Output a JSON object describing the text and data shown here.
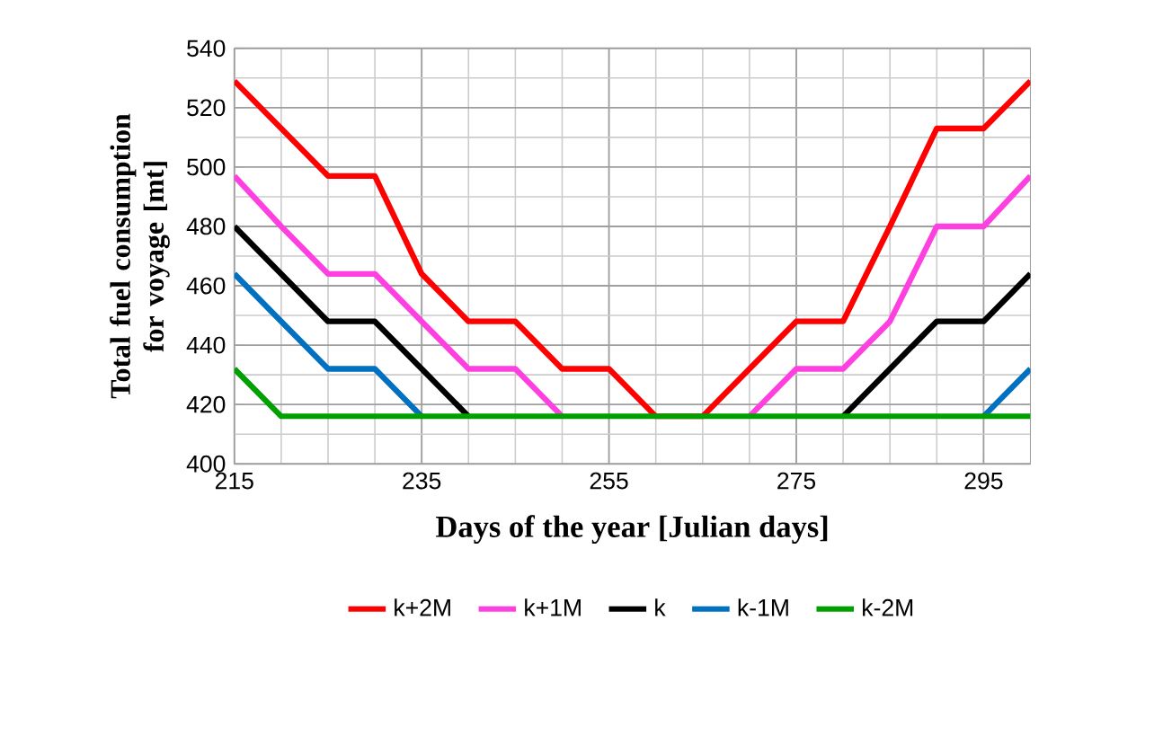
{
  "chart_data": {
    "type": "line",
    "xlabel": "Days of the year [Julian  days]",
    "ylabel": "Total fuel consumption for voyage [mt]",
    "x": [
      215,
      220,
      225,
      230,
      235,
      240,
      245,
      250,
      255,
      260,
      265,
      270,
      275,
      280,
      285,
      290,
      295,
      300
    ],
    "series": [
      {
        "name": "k+2M",
        "color": "#ff0000",
        "values": [
          529,
          513,
          497,
          497,
          464,
          448,
          448,
          432,
          432,
          416,
          416,
          432,
          448,
          448,
          480,
          513,
          513,
          529
        ]
      },
      {
        "name": "k+1M",
        "color": "#ff40e0",
        "values": [
          497,
          480,
          464,
          464,
          448,
          432,
          432,
          416,
          null,
          null,
          null,
          416,
          432,
          432,
          448,
          480,
          480,
          497
        ]
      },
      {
        "name": "k",
        "color": "#000000",
        "values": [
          480,
          464,
          448,
          448,
          432,
          416,
          null,
          null,
          null,
          null,
          null,
          null,
          null,
          416,
          432,
          448,
          448,
          464
        ]
      },
      {
        "name": "k-1M",
        "color": "#0070c0",
        "values": [
          464,
          448,
          432,
          432,
          416,
          null,
          null,
          null,
          null,
          null,
          null,
          null,
          null,
          null,
          null,
          null,
          416,
          432
        ]
      },
      {
        "name": "k-2M",
        "color": "#00a000",
        "values": [
          432,
          416,
          416,
          416,
          416,
          416,
          416,
          416,
          416,
          416,
          416,
          416,
          416,
          416,
          416,
          416,
          416,
          416
        ]
      }
    ],
    "xlim": [
      215,
      300
    ],
    "xticks": [
      215,
      235,
      255,
      275,
      295
    ],
    "ylim": [
      400,
      540
    ],
    "yticks": [
      400,
      420,
      440,
      460,
      480,
      500,
      520,
      540
    ],
    "grid": true,
    "legend": "bottom",
    "marker": "none",
    "line_style": "solid"
  }
}
